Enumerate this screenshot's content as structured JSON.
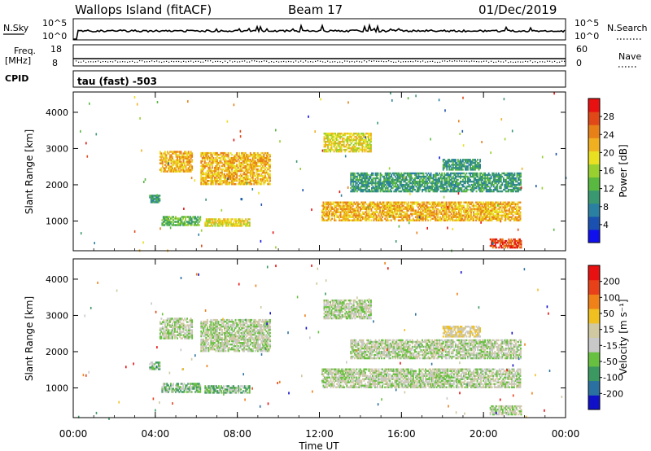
{
  "header": {
    "station": "Wallops Island (fitACF)",
    "beam": "Beam 17",
    "date": "01/Dec/2019"
  },
  "noise_panel": {
    "left_label": "N.Sky",
    "right_label": "N.Search",
    "left_ticks": [
      "10^5",
      "10^0"
    ],
    "right_ticks": [
      "10^5",
      "10^0"
    ]
  },
  "freq_panel": {
    "label_top": "Freq.",
    "label_bottom": "[MHz]",
    "left_ticks": [
      "18",
      "8"
    ],
    "right_ticks": [
      "60",
      "0"
    ],
    "right_label": "Nave"
  },
  "cpid": {
    "label": "CPID",
    "text": "tau (fast) -503"
  },
  "chart_data": [
    {
      "type": "heatmap",
      "name": "Power",
      "ylabel": "Slant Range [km]",
      "ylim": [
        180,
        4560
      ],
      "yticks": [
        1000,
        2000,
        3000,
        4000
      ],
      "xlim": [
        0,
        24
      ],
      "xticks": [
        "00:00",
        "04:00",
        "08:00",
        "12:00",
        "16:00",
        "20:00",
        "00:00"
      ],
      "colorbar": {
        "label": "Power [dB]",
        "ticks": [
          "4",
          "8",
          "12",
          "16",
          "20",
          "24",
          "28"
        ],
        "colors": [
          "#1010ee",
          "#1a50b0",
          "#2a80a0",
          "#3a9870",
          "#58b840",
          "#98d030",
          "#e8e020",
          "#f0b020",
          "#e88018",
          "#e04818",
          "#e81010"
        ]
      },
      "regions": [
        {
          "t": [
            4.2,
            5.8
          ],
          "r": [
            2350,
            2900
          ],
          "level": 7
        },
        {
          "t": [
            6.2,
            9.6
          ],
          "r": [
            2000,
            2900
          ],
          "level": 7
        },
        {
          "t": [
            4.3,
            6.2
          ],
          "r": [
            870,
            1120
          ],
          "level": 4
        },
        {
          "t": [
            6.4,
            8.6
          ],
          "r": [
            850,
            1050
          ],
          "level": 6
        },
        {
          "t": [
            3.7,
            4.2
          ],
          "r": [
            1500,
            1700
          ],
          "level": 3
        },
        {
          "t": [
            12.1,
            21.8
          ],
          "r": [
            1000,
            1500
          ],
          "level": 7
        },
        {
          "t": [
            12.2,
            14.5
          ],
          "r": [
            2900,
            3400
          ],
          "level": 6
        },
        {
          "t": [
            13.5,
            21.8
          ],
          "r": [
            1800,
            2300
          ],
          "level": 3
        },
        {
          "t": [
            18.0,
            19.8
          ],
          "r": [
            2400,
            2700
          ],
          "level": 3
        },
        {
          "t": [
            20.3,
            21.8
          ],
          "r": [
            250,
            520
          ],
          "level": 9
        }
      ]
    },
    {
      "type": "heatmap",
      "name": "Velocity",
      "ylabel": "Slant Range [km]",
      "ylim": [
        180,
        4560
      ],
      "yticks": [
        1000,
        2000,
        3000,
        4000
      ],
      "xlim": [
        0,
        24
      ],
      "xticks": [
        "00:00",
        "04:00",
        "08:00",
        "12:00",
        "16:00",
        "20:00",
        "00:00"
      ],
      "xlabel": "Time UT",
      "colorbar": {
        "label": "Velocity [m s⁻¹]",
        "ticks": [
          "200",
          "100",
          "50",
          "15",
          "-15",
          "-50",
          "-100",
          "-200"
        ],
        "colors": [
          "#1010c8",
          "#2a70a0",
          "#3a9860",
          "#68c040",
          "#c8c8c8",
          "#d0c8a0",
          "#f0c020",
          "#f08018",
          "#e84018",
          "#e81010"
        ]
      },
      "regions": [
        {
          "t": [
            4.2,
            5.8
          ],
          "r": [
            2350,
            2900
          ],
          "level": 4
        },
        {
          "t": [
            6.2,
            9.6
          ],
          "r": [
            2000,
            2900
          ],
          "level": 4
        },
        {
          "t": [
            4.3,
            6.2
          ],
          "r": [
            870,
            1120
          ],
          "level": 3
        },
        {
          "t": [
            6.4,
            8.6
          ],
          "r": [
            850,
            1050
          ],
          "level": 3
        },
        {
          "t": [
            3.7,
            4.2
          ],
          "r": [
            1500,
            1700
          ],
          "level": 3
        },
        {
          "t": [
            12.1,
            21.8
          ],
          "r": [
            1000,
            1500
          ],
          "level": 4
        },
        {
          "t": [
            12.2,
            14.5
          ],
          "r": [
            2900,
            3400
          ],
          "level": 4
        },
        {
          "t": [
            13.5,
            21.8
          ],
          "r": [
            1800,
            2300
          ],
          "level": 4
        },
        {
          "t": [
            18.0,
            19.8
          ],
          "r": [
            2400,
            2700
          ],
          "level": 5
        },
        {
          "t": [
            20.3,
            21.8
          ],
          "r": [
            250,
            520
          ],
          "level": 4
        }
      ]
    }
  ]
}
